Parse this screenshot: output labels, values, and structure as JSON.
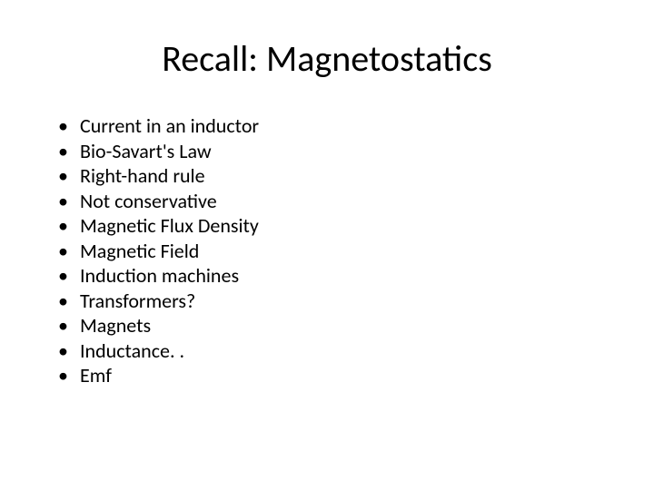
{
  "slide": {
    "title": "Recall: Magnetostatics",
    "title_fontsize": 40,
    "title_color": "#000000",
    "bullets": [
      "Current in an inductor",
      "Bio-Savart's Law",
      "Right-hand rule",
      "Not conservative",
      "Magnetic Flux Density",
      "Magnetic Field",
      "Induction machines",
      "Transformers?",
      "Magnets",
      "Inductance. .",
      "Emf"
    ],
    "bullet_fontsize": 22,
    "bullet_color": "#000000",
    "background_color": "#ffffff",
    "type": "presentation-slide"
  }
}
